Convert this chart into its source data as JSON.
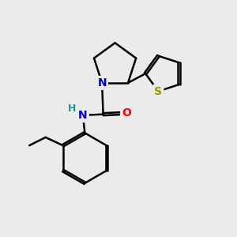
{
  "background_color": "#ebebeb",
  "atom_colors": {
    "C": "#000000",
    "N": "#0000cc",
    "O": "#ff0000",
    "S": "#999900",
    "H": "#2f8f8f"
  },
  "bond_color": "#000000",
  "bond_width": 1.8,
  "font_size_atom": 10,
  "figsize": [
    3.0,
    3.0
  ],
  "dpi": 100
}
